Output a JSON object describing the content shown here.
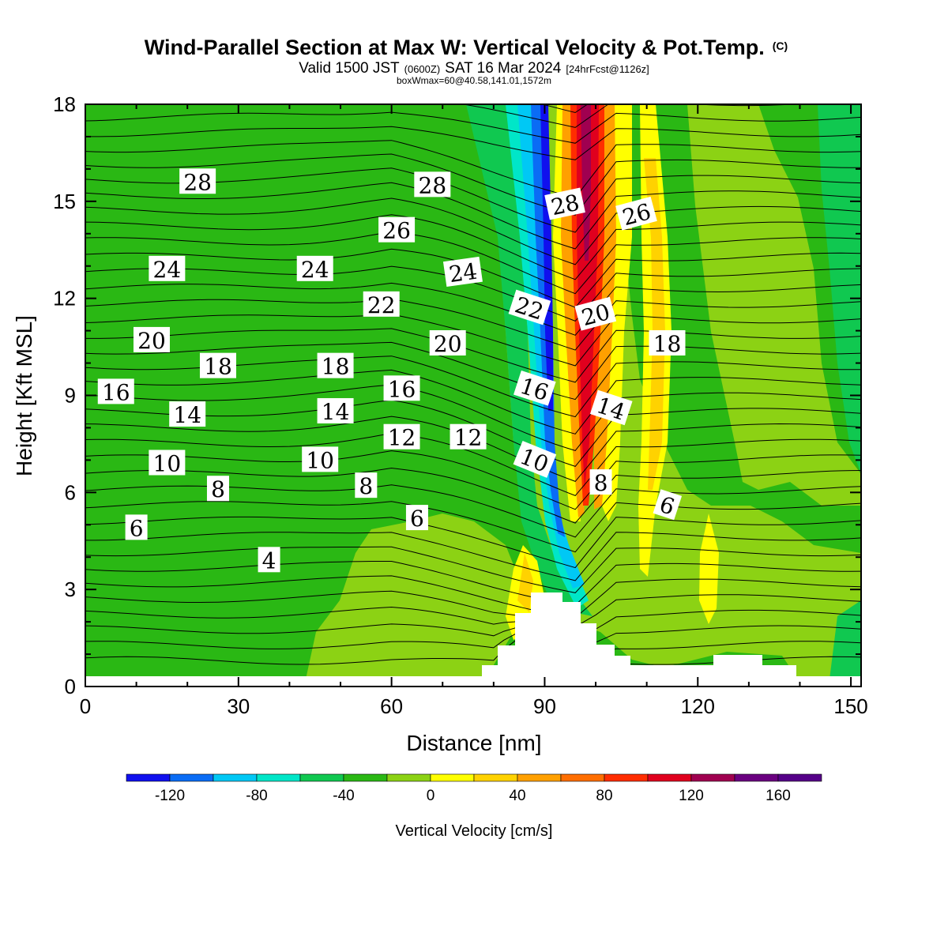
{
  "title": {
    "main": "Wind-Parallel Section at Max W: Vertical Velocity & Pot.Temp.",
    "copyright": "(C)",
    "valid_prefix": "Valid 1500 JST",
    "zulu": "(0600Z)",
    "valid_date": "SAT 16 Mar 2024",
    "forecast": "[24hrFcst@1126z]",
    "box": "boxWmax=60@40.58,141.01,1572m"
  },
  "chart_data": {
    "type": "heatmap",
    "xlabel": "Distance [nm]",
    "ylabel": "Height [Kft MSL]",
    "xlim": [
      0,
      152
    ],
    "ylim": [
      0,
      18
    ],
    "xticks": [
      "0",
      "30",
      "60",
      "90",
      "120",
      "150"
    ],
    "yticks": [
      "0",
      "3",
      "6",
      "9",
      "12",
      "15",
      "18"
    ],
    "colorbar": {
      "label": "Vertical Velocity [cm/s]",
      "range": [
        -140,
        180
      ],
      "step": 20,
      "tick_labels": [
        "-120",
        "-80",
        "-40",
        "0",
        "40",
        "80",
        "120",
        "160"
      ],
      "colors": [
        "#1010ee",
        "#0a6cf5",
        "#00c8f5",
        "#00e6c8",
        "#10c850",
        "#2ab814",
        "#8cd214",
        "#ffff00",
        "#ffd200",
        "#ffa000",
        "#ff6e00",
        "#ff2d00",
        "#e0001e",
        "#a00050",
        "#6a0080",
        "#550088"
      ]
    },
    "contour_labels": [
      {
        "text": "28",
        "x": 22,
        "y": 15.6
      },
      {
        "text": "28",
        "x": 68,
        "y": 15.5
      },
      {
        "text": "28",
        "x": 94,
        "y": 14.9,
        "rot": -12
      },
      {
        "text": "26",
        "x": 61,
        "y": 14.1
      },
      {
        "text": "26",
        "x": 108,
        "y": 14.6,
        "rot": -15
      },
      {
        "text": "24",
        "x": 16,
        "y": 12.9
      },
      {
        "text": "24",
        "x": 45,
        "y": 12.9
      },
      {
        "text": "24",
        "x": 74,
        "y": 12.8,
        "rot": -8
      },
      {
        "text": "22",
        "x": 58,
        "y": 11.8
      },
      {
        "text": "22",
        "x": 87,
        "y": 11.7,
        "rot": 18
      },
      {
        "text": "20",
        "x": 13,
        "y": 10.7
      },
      {
        "text": "20",
        "x": 71,
        "y": 10.6
      },
      {
        "text": "20",
        "x": 100,
        "y": 11.5,
        "rot": -15
      },
      {
        "text": "18",
        "x": 26,
        "y": 9.9
      },
      {
        "text": "18",
        "x": 49,
        "y": 9.9
      },
      {
        "text": "18",
        "x": 114,
        "y": 10.6
      },
      {
        "text": "16",
        "x": 6,
        "y": 9.1
      },
      {
        "text": "16",
        "x": 62,
        "y": 9.2
      },
      {
        "text": "16",
        "x": 88,
        "y": 9.2,
        "rot": 18
      },
      {
        "text": "14",
        "x": 20,
        "y": 8.4
      },
      {
        "text": "14",
        "x": 49,
        "y": 8.5
      },
      {
        "text": "14",
        "x": 103,
        "y": 8.6,
        "rot": 18
      },
      {
        "text": "12",
        "x": 62,
        "y": 7.7
      },
      {
        "text": "12",
        "x": 75,
        "y": 7.7
      },
      {
        "text": "10",
        "x": 16,
        "y": 6.9
      },
      {
        "text": "10",
        "x": 46,
        "y": 7.0
      },
      {
        "text": "10",
        "x": 88,
        "y": 7.0,
        "rot": 22
      },
      {
        "text": "8",
        "x": 26,
        "y": 6.1
      },
      {
        "text": "8",
        "x": 55,
        "y": 6.2
      },
      {
        "text": "8",
        "x": 101,
        "y": 6.3
      },
      {
        "text": "6",
        "x": 10,
        "y": 4.9
      },
      {
        "text": "6",
        "x": 65,
        "y": 5.2
      },
      {
        "text": "6",
        "x": 114,
        "y": 5.6,
        "rot": 18
      },
      {
        "text": "4",
        "x": 36,
        "y": 3.9
      }
    ]
  }
}
